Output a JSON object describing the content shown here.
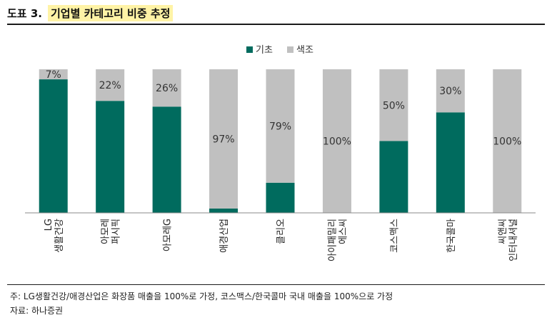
{
  "header": {
    "fig_num": "도표 3.",
    "title": "기업별 카테고리 비중 추정"
  },
  "chart_data": {
    "type": "bar",
    "stacked": true,
    "categories": [
      "LG\n생활건강",
      "아모레\n퍼시픽",
      "아모레G",
      "애경산업",
      "클리오",
      "아이패밀리\n에스씨",
      "코스맥스",
      "한국콜마",
      "씨앤씨\n인터내셔널"
    ],
    "series": [
      {
        "name": "기초",
        "color": "#006b5e",
        "values": [
          93,
          78,
          74,
          3,
          21,
          0,
          50,
          70,
          0
        ]
      },
      {
        "name": "색조",
        "color": "#c0c0c0",
        "values": [
          7,
          22,
          26,
          97,
          79,
          100,
          50,
          30,
          100
        ]
      }
    ],
    "data_labels": [
      "7%",
      "22%",
      "26%",
      "97%",
      "79%",
      "100%",
      "50%",
      "30%",
      "100%"
    ],
    "ylim": [
      0,
      100
    ],
    "legend": "top-center",
    "grid": false
  },
  "footer": {
    "note": "주: LG생활건강/애경산업은 화장품 매출을 100%로 가정, 코스맥스/한국콜마 국내 매출을 100%으로 가정",
    "source": "자료: 하나증권"
  }
}
